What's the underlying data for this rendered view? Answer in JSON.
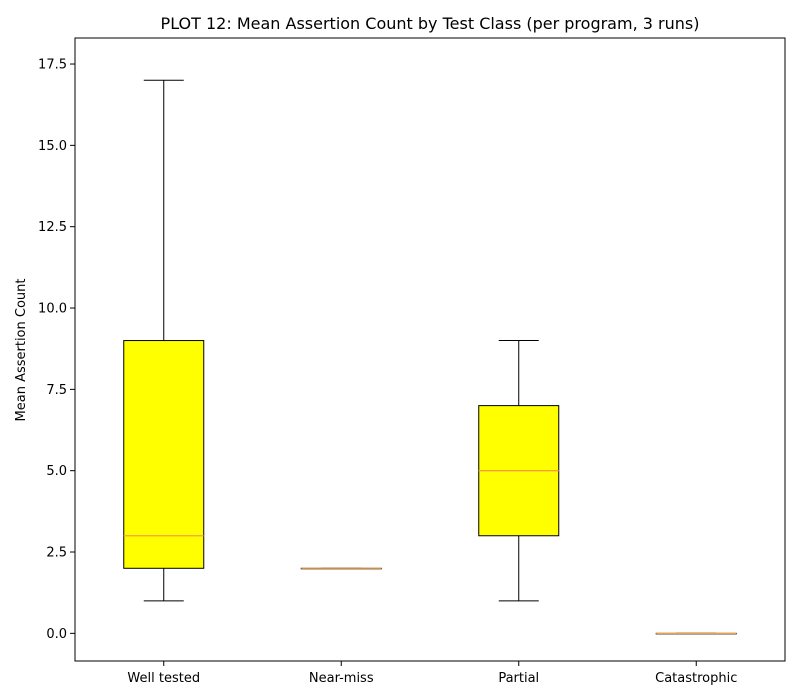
{
  "chart_data": {
    "type": "box",
    "title": "PLOT 12: Mean Assertion Count by Test Class (per program, 3 runs)",
    "xlabel": "",
    "ylabel": "Mean Assertion Count",
    "ylim": [
      -0.85,
      18.3
    ],
    "yticks": [
      "0.0",
      "2.5",
      "5.0",
      "7.5",
      "10.0",
      "12.5",
      "15.0",
      "17.5"
    ],
    "ytick_values": [
      0,
      2.5,
      5,
      7.5,
      10,
      12.5,
      15,
      17.5
    ],
    "categories": [
      "Well tested",
      "Near-miss",
      "Partial",
      "Catastrophic"
    ],
    "boxes": [
      {
        "whisker_low": 1,
        "q1": 2,
        "median": 3,
        "q3": 9,
        "whisker_high": 17
      },
      {
        "whisker_low": 2,
        "q1": 2,
        "median": 2,
        "q3": 2,
        "whisker_high": 2
      },
      {
        "whisker_low": 1,
        "q1": 3,
        "median": 5,
        "q3": 7,
        "whisker_high": 9
      },
      {
        "whisker_low": 0,
        "q1": 0,
        "median": 0,
        "q3": 0,
        "whisker_high": 0
      }
    ],
    "grid": false,
    "colors": {
      "box_fill": "#ffff00",
      "median": "#f4a040",
      "edge": "#000000"
    }
  }
}
